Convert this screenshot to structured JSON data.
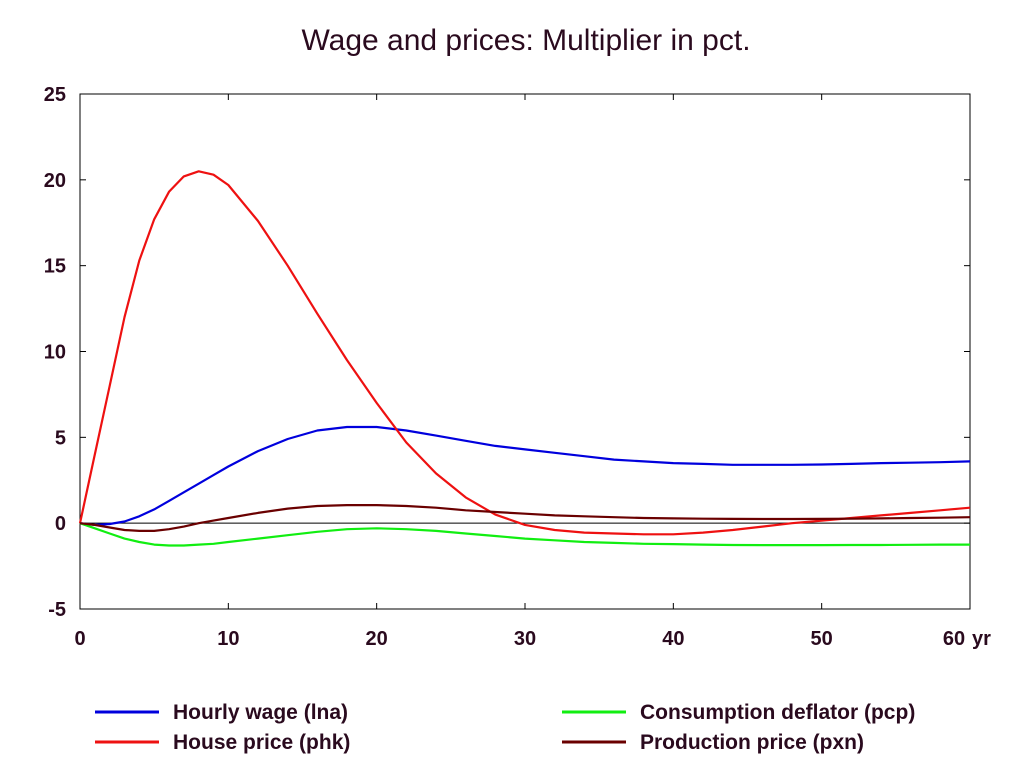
{
  "chart_data": {
    "type": "line",
    "title": "Wage and prices: Multiplier in pct.",
    "xlabel": "",
    "ylabel": "",
    "x_unit_label": "yr",
    "xlim": [
      0,
      60
    ],
    "ylim": [
      -5,
      25
    ],
    "xticks": [
      0,
      10,
      20,
      30,
      40,
      50,
      60
    ],
    "yticks": [
      -5,
      0,
      5,
      10,
      15,
      20,
      25
    ],
    "grid": false,
    "legend_position": "bottom",
    "x": [
      0,
      1,
      2,
      3,
      4,
      5,
      6,
      7,
      8,
      9,
      10,
      12,
      14,
      16,
      18,
      20,
      22,
      24,
      26,
      28,
      30,
      32,
      34,
      36,
      38,
      40,
      42,
      44,
      46,
      48,
      50,
      52,
      54,
      56,
      58,
      60
    ],
    "series": [
      {
        "name": "Hourly wage (lna)",
        "color": "#0000dd",
        "values": [
          0,
          -0.1,
          -0.05,
          0.1,
          0.4,
          0.8,
          1.3,
          1.8,
          2.3,
          2.8,
          3.3,
          4.2,
          4.9,
          5.4,
          5.6,
          5.6,
          5.4,
          5.1,
          4.8,
          4.5,
          4.3,
          4.1,
          3.9,
          3.7,
          3.6,
          3.5,
          3.45,
          3.4,
          3.4,
          3.4,
          3.42,
          3.45,
          3.5,
          3.52,
          3.55,
          3.6
        ]
      },
      {
        "name": "House price (phk)",
        "color": "#ee1111",
        "values": [
          0,
          4,
          8,
          12,
          15.3,
          17.7,
          19.3,
          20.2,
          20.5,
          20.3,
          19.7,
          17.6,
          15,
          12.2,
          9.5,
          7,
          4.7,
          2.9,
          1.5,
          0.5,
          -0.1,
          -0.4,
          -0.55,
          -0.6,
          -0.65,
          -0.65,
          -0.55,
          -0.4,
          -0.2,
          0,
          0.15,
          0.3,
          0.45,
          0.6,
          0.75,
          0.9
        ]
      },
      {
        "name": "Consumption deflator (pcp)",
        "color": "#11ee11",
        "values": [
          0,
          -0.3,
          -0.6,
          -0.9,
          -1.1,
          -1.25,
          -1.3,
          -1.3,
          -1.25,
          -1.2,
          -1.1,
          -0.9,
          -0.7,
          -0.5,
          -0.35,
          -0.3,
          -0.35,
          -0.45,
          -0.6,
          -0.75,
          -0.9,
          -1,
          -1.1,
          -1.15,
          -1.2,
          -1.22,
          -1.25,
          -1.27,
          -1.28,
          -1.28,
          -1.28,
          -1.27,
          -1.27,
          -1.26,
          -1.25,
          -1.25
        ]
      },
      {
        "name": "Production price (pxn)",
        "color": "#6a0000",
        "values": [
          0,
          -0.1,
          -0.25,
          -0.4,
          -0.45,
          -0.45,
          -0.35,
          -0.2,
          0,
          0.15,
          0.3,
          0.6,
          0.85,
          1,
          1.05,
          1.05,
          1,
          0.9,
          0.75,
          0.65,
          0.55,
          0.45,
          0.4,
          0.35,
          0.3,
          0.28,
          0.26,
          0.25,
          0.24,
          0.24,
          0.25,
          0.26,
          0.28,
          0.3,
          0.32,
          0.35
        ]
      }
    ]
  }
}
